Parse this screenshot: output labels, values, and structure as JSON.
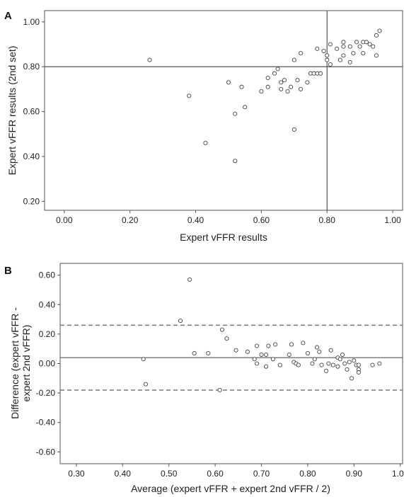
{
  "chart_data": [
    {
      "type": "scatter",
      "panel_label": "A",
      "title": "",
      "xlabel": "Expert vFFR results",
      "ylabel": "Expert vFFR results (2nd set)",
      "xlim": [
        -0.06,
        1.03
      ],
      "ylim": [
        0.16,
        1.05
      ],
      "xticks": [
        "0.00",
        "0.20",
        "0.40",
        "0.60",
        "0.80",
        "1.00"
      ],
      "yticks": [
        "0.20",
        "0.40",
        "0.60",
        "0.80",
        "1.00"
      ],
      "ref_lines": {
        "vertical": 0.8,
        "horizontal": 0.8
      },
      "grid": false,
      "points": [
        [
          0.26,
          0.83
        ],
        [
          0.38,
          0.67
        ],
        [
          0.43,
          0.46
        ],
        [
          0.5,
          0.73
        ],
        [
          0.52,
          0.59
        ],
        [
          0.52,
          0.38
        ],
        [
          0.54,
          0.71
        ],
        [
          0.55,
          0.62
        ],
        [
          0.6,
          0.69
        ],
        [
          0.62,
          0.71
        ],
        [
          0.62,
          0.75
        ],
        [
          0.64,
          0.77
        ],
        [
          0.65,
          0.79
        ],
        [
          0.66,
          0.7
        ],
        [
          0.66,
          0.73
        ],
        [
          0.67,
          0.74
        ],
        [
          0.68,
          0.69
        ],
        [
          0.69,
          0.71
        ],
        [
          0.7,
          0.83
        ],
        [
          0.7,
          0.52
        ],
        [
          0.71,
          0.74
        ],
        [
          0.72,
          0.7
        ],
        [
          0.72,
          0.86
        ],
        [
          0.74,
          0.73
        ],
        [
          0.75,
          0.77
        ],
        [
          0.76,
          0.77
        ],
        [
          0.77,
          0.77
        ],
        [
          0.77,
          0.88
        ],
        [
          0.78,
          0.77
        ],
        [
          0.79,
          0.87
        ],
        [
          0.8,
          0.85
        ],
        [
          0.8,
          0.83
        ],
        [
          0.81,
          0.81
        ],
        [
          0.81,
          0.9
        ],
        [
          0.83,
          0.88
        ],
        [
          0.84,
          0.83
        ],
        [
          0.85,
          0.85
        ],
        [
          0.85,
          0.89
        ],
        [
          0.85,
          0.91
        ],
        [
          0.87,
          0.82
        ],
        [
          0.87,
          0.89
        ],
        [
          0.88,
          0.86
        ],
        [
          0.89,
          0.91
        ],
        [
          0.9,
          0.89
        ],
        [
          0.91,
          0.91
        ],
        [
          0.91,
          0.86
        ],
        [
          0.92,
          0.91
        ],
        [
          0.93,
          0.9
        ],
        [
          0.94,
          0.89
        ],
        [
          0.95,
          0.85
        ],
        [
          0.95,
          0.94
        ],
        [
          0.96,
          0.96
        ]
      ]
    },
    {
      "type": "scatter",
      "panel_label": "B",
      "title": "",
      "xlabel": "Average (expert vFFR + expert 2nd vFFR / 2)",
      "ylabel": "Difference (expert vFFR - expert 2nd vFFR)",
      "xlim": [
        0.265,
        1.005
      ],
      "ylim": [
        -0.68,
        0.68
      ],
      "xticks": [
        "0.30",
        "0.40",
        "0.50",
        "0.60",
        "0.70",
        "0.80",
        "0.90",
        "1.00"
      ],
      "yticks": [
        "0.60",
        "0.40",
        "0.20",
        "0.00",
        "-0.20",
        "-0.40",
        "-0.60"
      ],
      "ref_lines": {
        "mean": 0.04,
        "upper_loa": 0.26,
        "lower_loa": -0.18
      },
      "grid": false,
      "points": [
        [
          0.445,
          0.03
        ],
        [
          0.45,
          -0.14
        ],
        [
          0.525,
          0.29
        ],
        [
          0.545,
          0.57
        ],
        [
          0.555,
          0.07
        ],
        [
          0.585,
          0.07
        ],
        [
          0.61,
          -0.18
        ],
        [
          0.615,
          0.23
        ],
        [
          0.625,
          0.17
        ],
        [
          0.645,
          0.09
        ],
        [
          0.67,
          0.08
        ],
        [
          0.685,
          0.03
        ],
        [
          0.69,
          0.0
        ],
        [
          0.69,
          0.12
        ],
        [
          0.7,
          0.06
        ],
        [
          0.71,
          0.06
        ],
        [
          0.71,
          -0.02
        ],
        [
          0.715,
          0.12
        ],
        [
          0.725,
          0.03
        ],
        [
          0.73,
          0.13
        ],
        [
          0.74,
          -0.01
        ],
        [
          0.76,
          0.06
        ],
        [
          0.765,
          0.13
        ],
        [
          0.77,
          0.01
        ],
        [
          0.775,
          0.0
        ],
        [
          0.78,
          -0.01
        ],
        [
          0.79,
          0.14
        ],
        [
          0.8,
          0.07
        ],
        [
          0.81,
          0.0
        ],
        [
          0.815,
          0.03
        ],
        [
          0.82,
          0.11
        ],
        [
          0.825,
          0.08
        ],
        [
          0.83,
          -0.01
        ],
        [
          0.84,
          -0.05
        ],
        [
          0.845,
          0.0
        ],
        [
          0.85,
          0.09
        ],
        [
          0.855,
          -0.01
        ],
        [
          0.865,
          0.04
        ],
        [
          0.865,
          -0.02
        ],
        [
          0.87,
          0.03
        ],
        [
          0.875,
          0.06
        ],
        [
          0.88,
          0.0
        ],
        [
          0.885,
          -0.04
        ],
        [
          0.89,
          0.01
        ],
        [
          0.895,
          -0.1
        ],
        [
          0.9,
          0.02
        ],
        [
          0.905,
          -0.01
        ],
        [
          0.91,
          -0.04
        ],
        [
          0.91,
          -0.06
        ],
        [
          0.91,
          -0.01
        ],
        [
          0.94,
          -0.01
        ],
        [
          0.955,
          0.0
        ]
      ]
    }
  ]
}
